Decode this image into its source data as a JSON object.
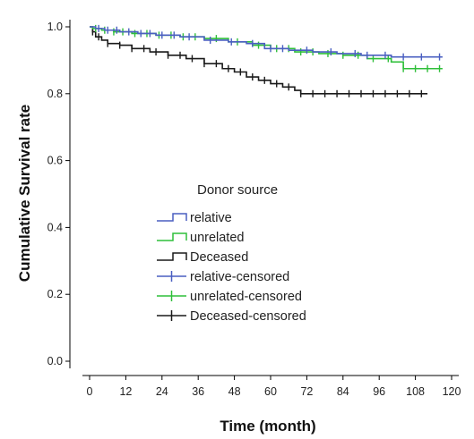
{
  "chart_data": {
    "type": "line",
    "subtype": "kaplan-meier",
    "xlabel": "Time (month)",
    "ylabel": "Cumulative Survival rate",
    "xlim": [
      0,
      120
    ],
    "ylim": [
      0,
      1.0
    ],
    "xticks": [
      "0",
      "12",
      "24",
      "36",
      "48",
      "60",
      "72",
      "84",
      "96",
      "108",
      "120"
    ],
    "yticks": [
      "0.0",
      "0.2",
      "0.4",
      "0.6",
      "0.8",
      "1.0"
    ],
    "grid": false,
    "legend": {
      "title": "Donor source",
      "placement": "center-left",
      "entries": [
        "relative",
        "unrelated",
        "Deceased",
        "relative-censored",
        "unrelated-censored",
        "Deceased-censored"
      ]
    },
    "series": [
      {
        "name": "relative",
        "color": "#4a5fc1",
        "x": [
          0,
          2,
          5,
          10,
          16,
          22,
          30,
          38,
          46,
          52,
          58,
          66,
          74,
          82,
          90,
          100,
          110,
          117
        ],
        "y": [
          1.0,
          0.995,
          0.99,
          0.985,
          0.98,
          0.975,
          0.97,
          0.96,
          0.955,
          0.95,
          0.935,
          0.93,
          0.925,
          0.92,
          0.915,
          0.91,
          0.91,
          0.91
        ],
        "censored_x": [
          3,
          6,
          9,
          13,
          17,
          20,
          24,
          28,
          33,
          40,
          47,
          54,
          60,
          64,
          72,
          80,
          88,
          92,
          98,
          104,
          110,
          116
        ]
      },
      {
        "name": "unrelated",
        "color": "#2fbf3a",
        "x": [
          0,
          1,
          4,
          8,
          14,
          22,
          30,
          38,
          46,
          54,
          60,
          68,
          76,
          84,
          92,
          100,
          104,
          117
        ],
        "y": [
          1.0,
          0.995,
          0.99,
          0.985,
          0.98,
          0.975,
          0.97,
          0.965,
          0.955,
          0.945,
          0.935,
          0.925,
          0.92,
          0.915,
          0.905,
          0.895,
          0.875,
          0.875
        ],
        "censored_x": [
          2,
          5,
          8,
          11,
          15,
          19,
          23,
          27,
          31,
          35,
          42,
          49,
          56,
          62,
          66,
          70,
          74,
          79,
          84,
          89,
          94,
          99,
          104,
          108,
          112,
          116
        ]
      },
      {
        "name": "Deceased",
        "color": "#1a1a1a",
        "x": [
          0,
          1,
          2,
          4,
          6,
          10,
          14,
          20,
          26,
          32,
          38,
          44,
          48,
          52,
          56,
          60,
          64,
          68,
          70,
          76,
          90,
          112
        ],
        "y": [
          1.0,
          0.985,
          0.97,
          0.96,
          0.95,
          0.945,
          0.935,
          0.925,
          0.915,
          0.905,
          0.89,
          0.875,
          0.865,
          0.85,
          0.84,
          0.83,
          0.82,
          0.81,
          0.8,
          0.8,
          0.8,
          0.8
        ],
        "censored_x": [
          1,
          3,
          6,
          10,
          14,
          18,
          22,
          26,
          30,
          34,
          38,
          42,
          46,
          50,
          54,
          58,
          62,
          66,
          70,
          74,
          78,
          82,
          86,
          90,
          94,
          98,
          102,
          106,
          110
        ]
      }
    ]
  }
}
